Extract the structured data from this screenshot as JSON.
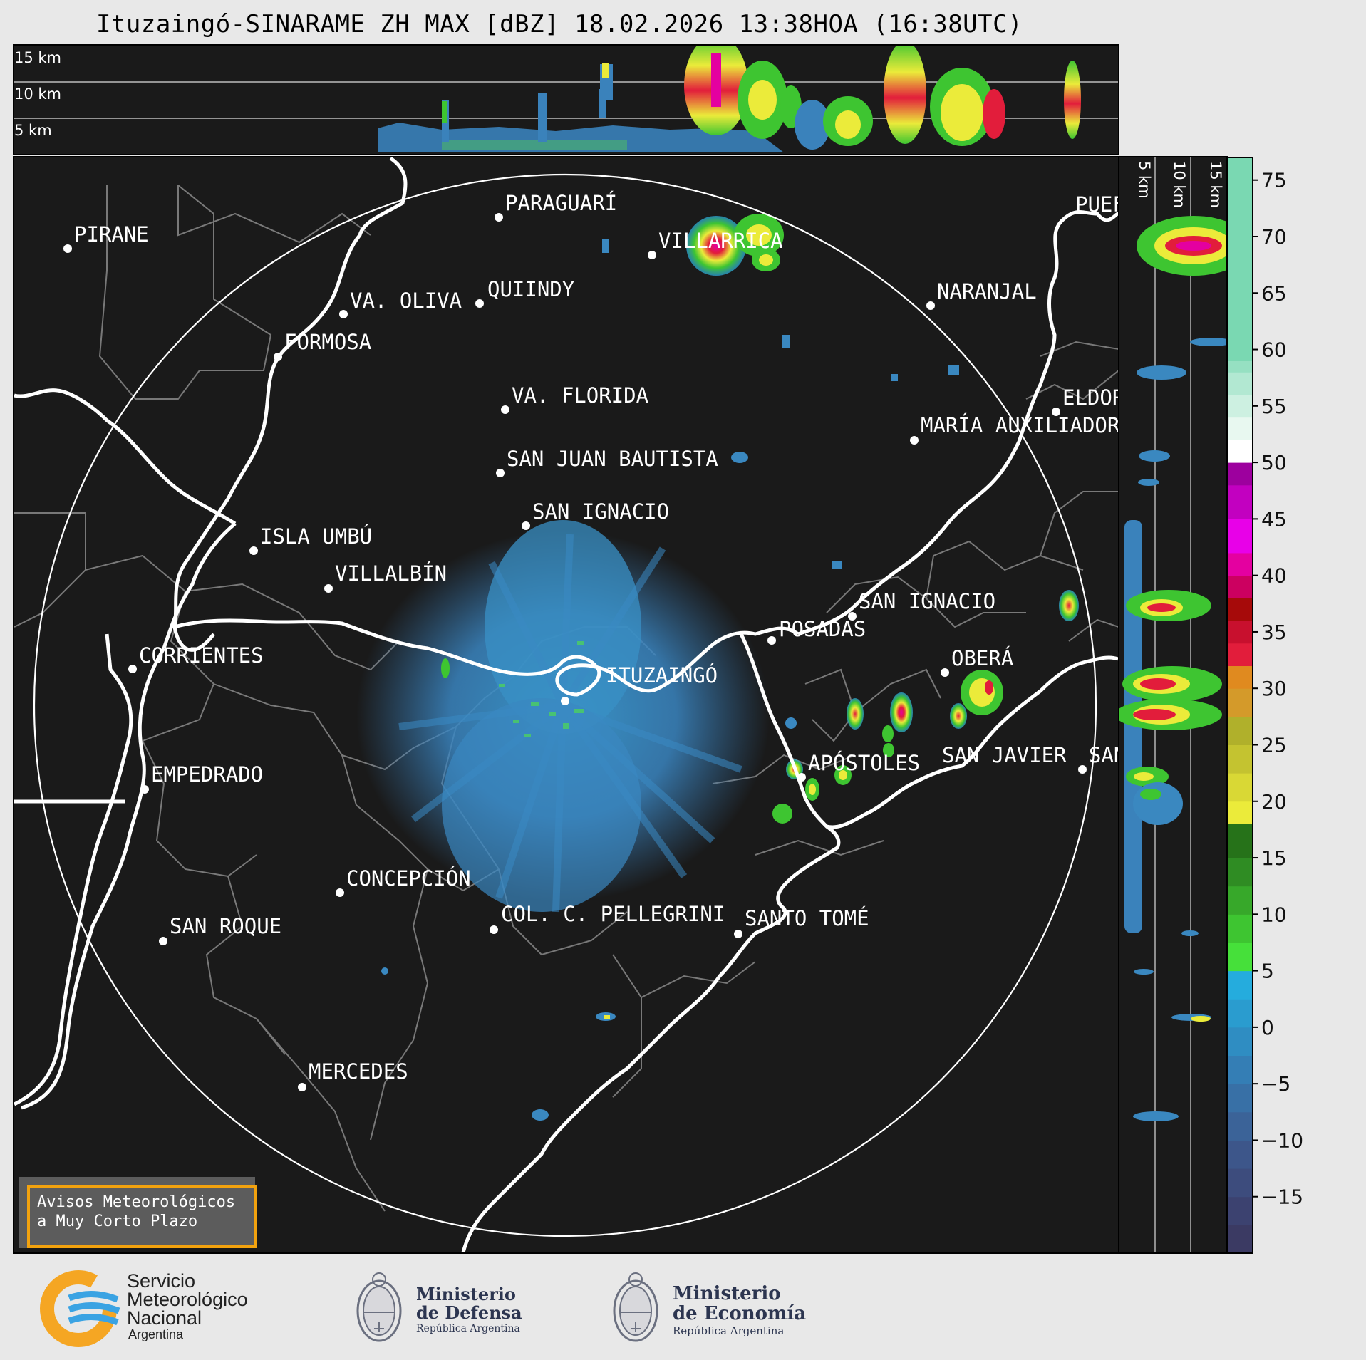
{
  "title": "Ituzaingó-SINARAME ZH MAX [dBZ] 18.02.2026 13:38HOA (16:38UTC)",
  "height_labels_top": [
    "15 km",
    "10 km",
    "5 km"
  ],
  "height_labels_right": [
    "5 km",
    "10 km",
    "15 km"
  ],
  "colorbar": {
    "ticks": [
      "75",
      "70",
      "65",
      "60",
      "55",
      "50",
      "45",
      "40",
      "35",
      "30",
      "25",
      "20",
      "15",
      "10",
      "5",
      "0",
      "−5",
      "−10",
      "−15"
    ],
    "colors": [
      "#3b3a63",
      "#3c4270",
      "#3d4c7d",
      "#3d568a",
      "#3b6398",
      "#3870a6",
      "#347eb5",
      "#2f8dc2",
      "#2a9ccf",
      "#25acdd",
      "#46e03a",
      "#3ec531",
      "#37a82a",
      "#2f8c23",
      "#267219",
      "#ebeb3a",
      "#d9d835",
      "#c4c330",
      "#b0b02b",
      "#d49a2a",
      "#e08a1f",
      "#e21d3b",
      "#c8102e",
      "#a60a0a",
      "#cc0060",
      "#e400a0",
      "#e800e8",
      "#c200c0",
      "#9d009e",
      "#ffffff",
      "#e8f8f0",
      "#cdf0e1",
      "#b2e8d2",
      "#96e0c2",
      "#7ad8b2"
    ]
  },
  "cities": [
    {
      "name": "PIRANE"
    },
    {
      "name": "PARAGUARÍ"
    },
    {
      "name": "VILLARRICA"
    },
    {
      "name": "QUIINDY"
    },
    {
      "name": "VA. OLIVA"
    },
    {
      "name": "FORMOSA"
    },
    {
      "name": "NARANJAL"
    },
    {
      "name": "VA. FLORIDA"
    },
    {
      "name": "ELDOR"
    },
    {
      "name": "MARÍA AUXILIADOR"
    },
    {
      "name": "SAN JUAN BAUTISTA"
    },
    {
      "name": "SAN IGNACIO"
    },
    {
      "name": "ISLA UMBÚ"
    },
    {
      "name": "VILLALBÍN"
    },
    {
      "name": "SAN IGNACIO"
    },
    {
      "name": "POSADAS"
    },
    {
      "name": "CORRIENTES"
    },
    {
      "name": "ITUZAINGÓ"
    },
    {
      "name": "OBERÁ"
    },
    {
      "name": "EMPEDRADO"
    },
    {
      "name": "APÓSTOLES"
    },
    {
      "name": "SAN JAVIER"
    },
    {
      "name": "SAN"
    },
    {
      "name": "CONCEPCIÓN"
    },
    {
      "name": "COL. C. PELLEGRINI"
    },
    {
      "name": "SANTO TOMÉ"
    },
    {
      "name": "SAN ROQUE"
    },
    {
      "name": "MERCEDES"
    },
    {
      "name": "PUEF"
    }
  ],
  "warning_box": {
    "line1": "Avisos Meteorológicos",
    "line2": "a Muy Corto Plazo"
  },
  "logos": {
    "smn": {
      "line1": "Servicio",
      "line2": "Meteorológico",
      "line3": "Nacional",
      "line4": "Argentina",
      "colors": [
        "#f5a623",
        "#3aa3e3"
      ]
    },
    "defensa": {
      "line1": "Ministerio",
      "line2": "de Defensa",
      "line3": "República Argentina"
    },
    "economia": {
      "line1": "Ministerio",
      "line2": "de Economía",
      "line3": "República Argentina"
    }
  }
}
